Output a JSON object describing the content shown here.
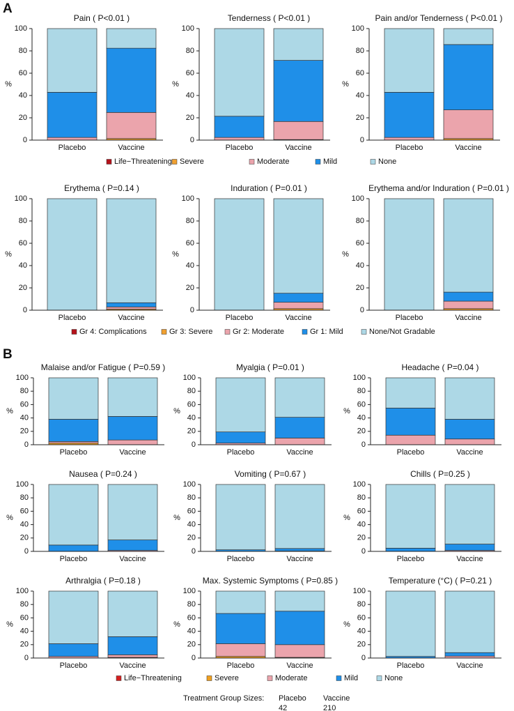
{
  "panel_labels": [
    "A",
    "B"
  ],
  "chart_data": [
    {
      "type": "bar",
      "stacked": true,
      "title": "Pain ( P<0.01 )",
      "ylabel": "%",
      "categories": [
        "Placebo",
        "Vaccine"
      ],
      "ylim": [
        0,
        100
      ],
      "yticks": [
        0,
        20,
        40,
        60,
        80,
        100
      ],
      "series": [
        {
          "color": "#b5121b",
          "values": [
            0,
            0
          ]
        },
        {
          "color": "#f0a030",
          "values": [
            0,
            1.4
          ]
        },
        {
          "color": "#eba4ac",
          "values": [
            2.4,
            23.4
          ]
        },
        {
          "color": "#1f8fe8",
          "values": [
            40.5,
            57.6
          ]
        },
        {
          "color": "#add8e6",
          "values": [
            57.1,
            17.6
          ]
        }
      ]
    },
    {
      "type": "bar",
      "stacked": true,
      "title": "Tenderness ( P<0.01 )",
      "ylabel": "%",
      "categories": [
        "Placebo",
        "Vaccine"
      ],
      "ylim": [
        0,
        100
      ],
      "yticks": [
        0,
        20,
        40,
        60,
        80,
        100
      ],
      "series": [
        {
          "color": "#b5121b",
          "values": [
            0,
            0
          ]
        },
        {
          "color": "#f0a030",
          "values": [
            0,
            0.5
          ]
        },
        {
          "color": "#eba4ac",
          "values": [
            2.4,
            16.2
          ]
        },
        {
          "color": "#1f8fe8",
          "values": [
            19,
            54.8
          ]
        },
        {
          "color": "#add8e6",
          "values": [
            78.6,
            28.5
          ]
        }
      ]
    },
    {
      "type": "bar",
      "stacked": true,
      "title": "Pain and/or Tenderness ( P<0.01 )",
      "ylabel": "%",
      "categories": [
        "Placebo",
        "Vaccine"
      ],
      "ylim": [
        0,
        100
      ],
      "yticks": [
        0,
        20,
        40,
        60,
        80,
        100
      ],
      "series": [
        {
          "color": "#b5121b",
          "values": [
            0,
            0
          ]
        },
        {
          "color": "#f0a030",
          "values": [
            0,
            1.4
          ]
        },
        {
          "color": "#eba4ac",
          "values": [
            2.4,
            25.7
          ]
        },
        {
          "color": "#1f8fe8",
          "values": [
            40.5,
            58.6
          ]
        },
        {
          "color": "#add8e6",
          "values": [
            57.1,
            14.3
          ]
        }
      ]
    },
    {
      "type": "bar",
      "stacked": true,
      "title": "Erythema ( P=0.14 )",
      "ylabel": "%",
      "categories": [
        "Placebo",
        "Vaccine"
      ],
      "ylim": [
        0,
        100
      ],
      "yticks": [
        0,
        20,
        40,
        60,
        80,
        100
      ],
      "series": [
        {
          "color": "#b5121b",
          "values": [
            0,
            0
          ]
        },
        {
          "color": "#f0a030",
          "values": [
            0,
            1
          ]
        },
        {
          "color": "#eba4ac",
          "values": [
            0,
            1.9
          ]
        },
        {
          "color": "#1f8fe8",
          "values": [
            0,
            3.8
          ]
        },
        {
          "color": "#add8e6",
          "values": [
            100,
            93.3
          ]
        }
      ]
    },
    {
      "type": "bar",
      "stacked": true,
      "title": "Induration ( P=0.01 )",
      "ylabel": "%",
      "categories": [
        "Placebo",
        "Vaccine"
      ],
      "ylim": [
        0,
        100
      ],
      "yticks": [
        0,
        20,
        40,
        60,
        80,
        100
      ],
      "series": [
        {
          "color": "#b5121b",
          "values": [
            0,
            0
          ]
        },
        {
          "color": "#f0a030",
          "values": [
            0,
            1.4
          ]
        },
        {
          "color": "#eba4ac",
          "values": [
            0,
            5.7
          ]
        },
        {
          "color": "#1f8fe8",
          "values": [
            0,
            8.1
          ]
        },
        {
          "color": "#add8e6",
          "values": [
            100,
            84.8
          ]
        }
      ]
    },
    {
      "type": "bar",
      "stacked": true,
      "title": "Erythema and/or Induration ( P=0.01 )",
      "ylabel": "%",
      "categories": [
        "Placebo",
        "Vaccine"
      ],
      "ylim": [
        0,
        100
      ],
      "yticks": [
        0,
        20,
        40,
        60,
        80,
        100
      ],
      "series": [
        {
          "color": "#b5121b",
          "values": [
            0,
            0
          ]
        },
        {
          "color": "#f0a030",
          "values": [
            0,
            1.4
          ]
        },
        {
          "color": "#eba4ac",
          "values": [
            0,
            6.7
          ]
        },
        {
          "color": "#1f8fe8",
          "values": [
            0,
            8.1
          ]
        },
        {
          "color": "#add8e6",
          "values": [
            100,
            83.8
          ]
        }
      ]
    },
    {
      "type": "bar",
      "stacked": true,
      "title": "Malaise and/or Fatigue ( P=0.59 )",
      "ylabel": "%",
      "categories": [
        "Placebo",
        "Vaccine"
      ],
      "ylim": [
        0,
        100
      ],
      "yticks": [
        0,
        20,
        40,
        60,
        80,
        100
      ],
      "series": [
        {
          "color": "#d42020",
          "values": [
            0,
            0
          ]
        },
        {
          "color": "#f0a020",
          "values": [
            2.4,
            0
          ]
        },
        {
          "color": "#eba4ac",
          "values": [
            2.4,
            7.1
          ]
        },
        {
          "color": "#1f8fe8",
          "values": [
            33.3,
            35.2
          ]
        },
        {
          "color": "#add8e6",
          "values": [
            61.9,
            57.7
          ]
        }
      ]
    },
    {
      "type": "bar",
      "stacked": true,
      "title": "Myalgia ( P=0.01 )",
      "ylabel": "%",
      "categories": [
        "Placebo",
        "Vaccine"
      ],
      "ylim": [
        0,
        100
      ],
      "yticks": [
        0,
        20,
        40,
        60,
        80,
        100
      ],
      "series": [
        {
          "color": "#d42020",
          "values": [
            0,
            0
          ]
        },
        {
          "color": "#f0a020",
          "values": [
            0,
            0
          ]
        },
        {
          "color": "#eba4ac",
          "values": [
            2.4,
            10
          ]
        },
        {
          "color": "#1f8fe8",
          "values": [
            16.7,
            31
          ]
        },
        {
          "color": "#add8e6",
          "values": [
            80.9,
            59
          ]
        }
      ]
    },
    {
      "type": "bar",
      "stacked": true,
      "title": "Headache ( P=0.04 )",
      "ylabel": "%",
      "categories": [
        "Placebo",
        "Vaccine"
      ],
      "ylim": [
        0,
        100
      ],
      "yticks": [
        0,
        20,
        40,
        60,
        80,
        100
      ],
      "series": [
        {
          "color": "#d42020",
          "values": [
            0,
            0
          ]
        },
        {
          "color": "#f0a020",
          "values": [
            0,
            0
          ]
        },
        {
          "color": "#eba4ac",
          "values": [
            14.3,
            8.6
          ]
        },
        {
          "color": "#1f8fe8",
          "values": [
            40.5,
            29.5
          ]
        },
        {
          "color": "#add8e6",
          "values": [
            45.2,
            61.9
          ]
        }
      ]
    },
    {
      "type": "bar",
      "stacked": true,
      "title": "Nausea ( P=0.24 )",
      "ylabel": "%",
      "categories": [
        "Placebo",
        "Vaccine"
      ],
      "ylim": [
        0,
        100
      ],
      "yticks": [
        0,
        20,
        40,
        60,
        80,
        100
      ],
      "series": [
        {
          "color": "#d42020",
          "values": [
            0,
            0
          ]
        },
        {
          "color": "#f0a020",
          "values": [
            0,
            0
          ]
        },
        {
          "color": "#eba4ac",
          "values": [
            0,
            1.4
          ]
        },
        {
          "color": "#1f8fe8",
          "values": [
            9.5,
            15.7
          ]
        },
        {
          "color": "#add8e6",
          "values": [
            90.5,
            82.9
          ]
        }
      ]
    },
    {
      "type": "bar",
      "stacked": true,
      "title": "Vomiting ( P=0.67 )",
      "ylabel": "%",
      "categories": [
        "Placebo",
        "Vaccine"
      ],
      "ylim": [
        0,
        100
      ],
      "yticks": [
        0,
        20,
        40,
        60,
        80,
        100
      ],
      "series": [
        {
          "color": "#d42020",
          "values": [
            0,
            0
          ]
        },
        {
          "color": "#f0a020",
          "values": [
            0,
            0
          ]
        },
        {
          "color": "#eba4ac",
          "values": [
            0,
            0.5
          ]
        },
        {
          "color": "#1f8fe8",
          "values": [
            2.4,
            3.8
          ]
        },
        {
          "color": "#add8e6",
          "values": [
            97.6,
            95.7
          ]
        }
      ]
    },
    {
      "type": "bar",
      "stacked": true,
      "title": "Chills ( P=0.25 )",
      "ylabel": "%",
      "categories": [
        "Placebo",
        "Vaccine"
      ],
      "ylim": [
        0,
        100
      ],
      "yticks": [
        0,
        20,
        40,
        60,
        80,
        100
      ],
      "series": [
        {
          "color": "#d42020",
          "values": [
            0,
            0
          ]
        },
        {
          "color": "#f0a020",
          "values": [
            0,
            0
          ]
        },
        {
          "color": "#eba4ac",
          "values": [
            0,
            1.4
          ]
        },
        {
          "color": "#1f8fe8",
          "values": [
            4.8,
            9.5
          ]
        },
        {
          "color": "#add8e6",
          "values": [
            95.2,
            89.1
          ]
        }
      ]
    },
    {
      "type": "bar",
      "stacked": true,
      "title": "Arthralgia ( P=0.18 )",
      "ylabel": "%",
      "categories": [
        "Placebo",
        "Vaccine"
      ],
      "ylim": [
        0,
        100
      ],
      "yticks": [
        0,
        20,
        40,
        60,
        80,
        100
      ],
      "series": [
        {
          "color": "#d42020",
          "values": [
            0,
            0
          ]
        },
        {
          "color": "#f0a020",
          "values": [
            0,
            1
          ]
        },
        {
          "color": "#eba4ac",
          "values": [
            2.4,
            3.8
          ]
        },
        {
          "color": "#1f8fe8",
          "values": [
            19,
            27.1
          ]
        },
        {
          "color": "#add8e6",
          "values": [
            78.6,
            68.1
          ]
        }
      ]
    },
    {
      "type": "bar",
      "stacked": true,
      "title": "Max. Systemic Symptoms ( P=0.85 )",
      "ylabel": "%",
      "categories": [
        "Placebo",
        "Vaccine"
      ],
      "ylim": [
        0,
        100
      ],
      "yticks": [
        0,
        20,
        40,
        60,
        80,
        100
      ],
      "series": [
        {
          "color": "#d42020",
          "values": [
            0,
            0
          ]
        },
        {
          "color": "#f0a020",
          "values": [
            2.4,
            1
          ]
        },
        {
          "color": "#eba4ac",
          "values": [
            19,
            19
          ]
        },
        {
          "color": "#1f8fe8",
          "values": [
            45.2,
            50
          ]
        },
        {
          "color": "#add8e6",
          "values": [
            33.4,
            30
          ]
        }
      ]
    },
    {
      "type": "bar",
      "stacked": true,
      "title": "Temperature (°C) ( P=0.21 )",
      "ylabel": "%",
      "categories": [
        "Placebo",
        "Vaccine"
      ],
      "ylim": [
        0,
        100
      ],
      "yticks": [
        0,
        20,
        40,
        60,
        80,
        100
      ],
      "series": [
        {
          "color": "#d42020",
          "values": [
            0,
            0
          ]
        },
        {
          "color": "#f0a020",
          "values": [
            0,
            0
          ]
        },
        {
          "color": "#eba4ac",
          "values": [
            0,
            2.9
          ]
        },
        {
          "color": "#1f8fe8",
          "values": [
            2.4,
            5.2
          ]
        },
        {
          "color": "#add8e6",
          "values": [
            97.6,
            91.9
          ]
        }
      ]
    }
  ],
  "legends": [
    [
      {
        "name": "Life−Threatening",
        "color": "#b5121b"
      },
      {
        "name": "Severe",
        "color": "#f0a030"
      },
      {
        "name": "Moderate",
        "color": "#eba4ac"
      },
      {
        "name": "Mild",
        "color": "#1f8fe8"
      },
      {
        "name": "None",
        "color": "#add8e6"
      }
    ],
    [
      {
        "name": "Gr 4: Complications",
        "color": "#b5121b"
      },
      {
        "name": "Gr 3: Severe",
        "color": "#f0a030"
      },
      {
        "name": "Gr 2: Moderate",
        "color": "#eba4ac"
      },
      {
        "name": "Gr 1: Mild",
        "color": "#1f8fe8"
      },
      {
        "name": "None/Not Gradable",
        "color": "#add8e6"
      }
    ],
    [
      {
        "name": "Life−Threatening",
        "color": "#d42020"
      },
      {
        "name": "Severe",
        "color": "#f0a020"
      },
      {
        "name": "Moderate",
        "color": "#eba4ac"
      },
      {
        "name": "Mild",
        "color": "#1f8fe8"
      },
      {
        "name": "None",
        "color": "#add8e6"
      }
    ]
  ],
  "footer": {
    "label": "Treatment Group Sizes:",
    "groups": [
      {
        "name": "Placebo",
        "size": 42
      },
      {
        "name": "Vaccine",
        "size": 210
      }
    ]
  }
}
